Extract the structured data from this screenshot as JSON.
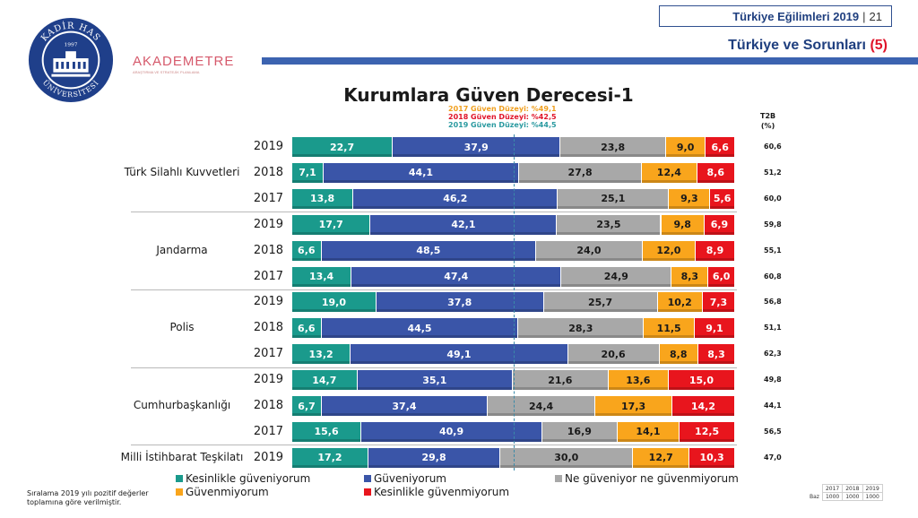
{
  "header": {
    "report": "Türkiye Eğilimleri 2019",
    "page": "21"
  },
  "subtitle": {
    "text": "Türkiye ve Sorunları",
    "number": "(5)"
  },
  "logo": {
    "text": "KADİR HAS ÜNİVERSİTESİ",
    "year": "1997"
  },
  "brand": {
    "name": "AKADEMETRE",
    "tagline": "ARAŞTIRMA VE STRATEJİK PLANLAMA"
  },
  "colors": {
    "kesinlikle_guveniyorum": "#1a9a8c",
    "guveniyorum": "#3a55a8",
    "ne_guveniyor": "#a8a8a8",
    "guvenmiyorum": "#f9a51c",
    "kesinlikle_guvenmiyorum": "#e8151d",
    "accent": "#3c63b0",
    "subtitle_num": "#e0142a"
  },
  "levels": [
    {
      "text": "2017 Güven Düzeyi: %49,1",
      "color": "#f0a020"
    },
    {
      "text": "2018 Güven Düzeyi: %42,5",
      "color": "#e0142a"
    },
    {
      "text": "2019 Güven Düzeyi: %44,5",
      "color": "#2a9aa0"
    }
  ],
  "t2b_header": {
    "line1": "T2B",
    "line2": "(%)"
  },
  "note": "Sıralama 2019 yılı pozitif değerler toplamına göre verilmiştir.",
  "baz": {
    "label": "Baz",
    "years": [
      "2017",
      "2018",
      "2019"
    ],
    "values": [
      "1000",
      "1000",
      "1000"
    ]
  },
  "chart_data": {
    "type": "bar",
    "title": "Kurumlara Güven Derecesi-1",
    "orientation": "horizontal-stacked-100",
    "series": [
      {
        "name": "Kesinlikle güveniyorum",
        "color": "#1a9a8c"
      },
      {
        "name": "Güveniyorum",
        "color": "#3a55a8"
      },
      {
        "name": "Ne güveniyor ne güvenmiyorum",
        "color": "#a8a8a8"
      },
      {
        "name": "Güvenmiyorum",
        "color": "#f9a51c"
      },
      {
        "name": "Kesinlikle güvenmiyorum",
        "color": "#e8151d"
      }
    ],
    "institutions": [
      {
        "name": "Türk Silahlı Kuvvetleri",
        "rows": [
          {
            "year": "2019",
            "values": [
              "22,7",
              "37,9",
              "23,8",
              "9,0",
              "6,6"
            ],
            "t2b": "60,6"
          },
          {
            "year": "2018",
            "values": [
              "7,1",
              "44,1",
              "27,8",
              "12,4",
              "8,6"
            ],
            "t2b": "51,2"
          },
          {
            "year": "2017",
            "values": [
              "13,8",
              "46,2",
              "25,1",
              "9,3",
              "5,6"
            ],
            "t2b": "60,0"
          }
        ]
      },
      {
        "name": "Jandarma",
        "rows": [
          {
            "year": "2019",
            "values": [
              "17,7",
              "42,1",
              "23,5",
              "9,8",
              "6,9"
            ],
            "t2b": "59,8"
          },
          {
            "year": "2018",
            "values": [
              "6,6",
              "48,5",
              "24,0",
              "12,0",
              "8,9"
            ],
            "t2b": "55,1"
          },
          {
            "year": "2017",
            "values": [
              "13,4",
              "47,4",
              "24,9",
              "8,3",
              "6,0"
            ],
            "t2b": "60,8"
          }
        ]
      },
      {
        "name": "Polis",
        "rows": [
          {
            "year": "2019",
            "values": [
              "19,0",
              "37,8",
              "25,7",
              "10,2",
              "7,3"
            ],
            "t2b": "56,8"
          },
          {
            "year": "2018",
            "values": [
              "6,6",
              "44,5",
              "28,3",
              "11,5",
              "9,1"
            ],
            "t2b": "51,1"
          },
          {
            "year": "2017",
            "values": [
              "13,2",
              "49,1",
              "20,6",
              "8,8",
              "8,3"
            ],
            "t2b": "62,3"
          }
        ]
      },
      {
        "name": "Cumhurbaşkanlığı",
        "rows": [
          {
            "year": "2019",
            "values": [
              "14,7",
              "35,1",
              "21,6",
              "13,6",
              "15,0"
            ],
            "t2b": "49,8"
          },
          {
            "year": "2018",
            "values": [
              "6,7",
              "37,4",
              "24,4",
              "17,3",
              "14,2"
            ],
            "t2b": "44,1"
          },
          {
            "year": "2017",
            "values": [
              "15,6",
              "40,9",
              "16,9",
              "14,1",
              "12,5"
            ],
            "t2b": "56,5"
          }
        ]
      },
      {
        "name": "Milli İstihbarat Teşkilatı",
        "rows": [
          {
            "year": "2019",
            "values": [
              "17,2",
              "29,8",
              "30,0",
              "12,7",
              "10,3"
            ],
            "t2b": "47,0"
          }
        ]
      }
    ]
  }
}
